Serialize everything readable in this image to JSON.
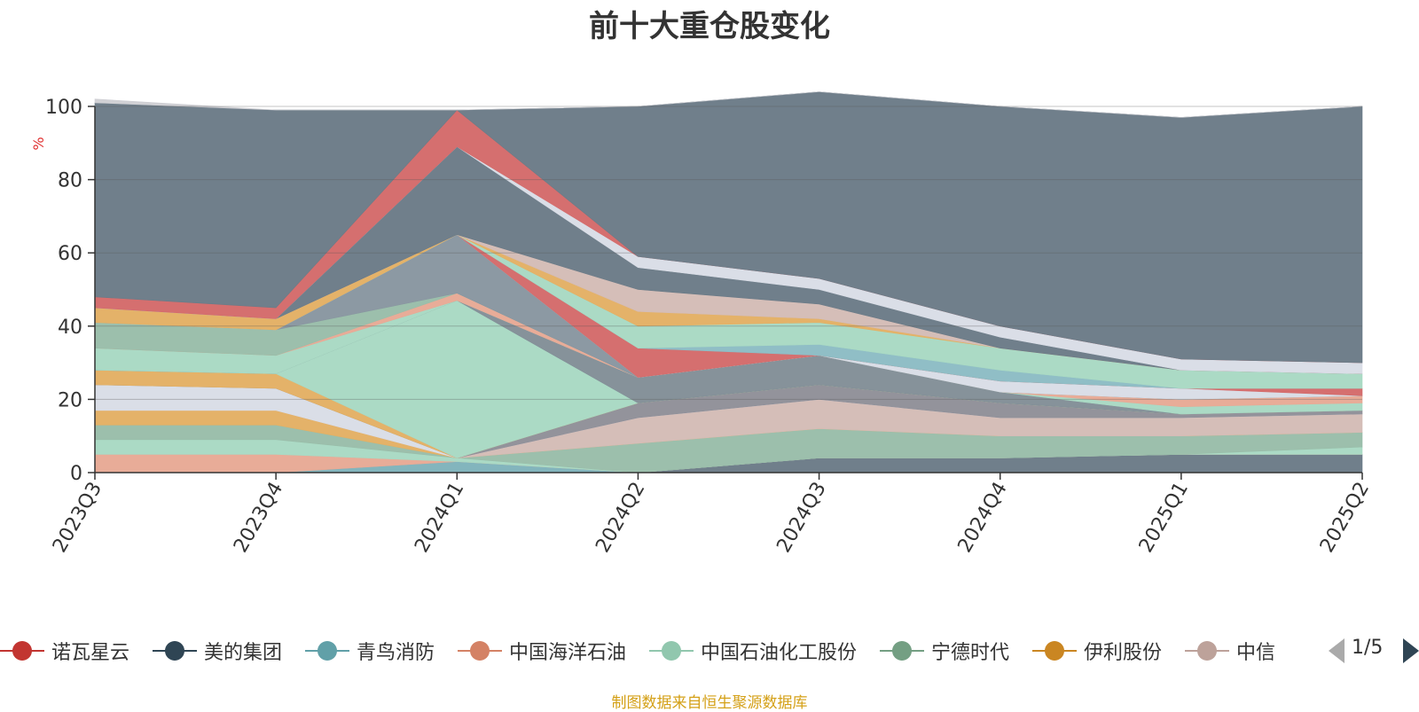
{
  "chart_data": {
    "type": "area",
    "stacked": true,
    "title": "前十大重仓股变化",
    "xlabel": "",
    "ylabel": "%",
    "ylim": [
      0,
      100
    ],
    "yticks": [
      0,
      20,
      40,
      60,
      80,
      100
    ],
    "grid": true,
    "legend_position": "bottom",
    "categories": [
      "2023Q3",
      "2023Q4",
      "2024Q1",
      "2024Q2",
      "2024Q3",
      "2024Q4",
      "2025Q1",
      "2025Q2"
    ],
    "series": [
      {
        "name": "美的集团",
        "color": "#6b7b87",
        "values": [
          0,
          0,
          0,
          0,
          4,
          4,
          5,
          5
        ]
      },
      {
        "name": "青鸟消防",
        "color": "#7fb3bb",
        "values": [
          0,
          0,
          3,
          0,
          0,
          0,
          0,
          0
        ]
      },
      {
        "name": "中国海洋石油",
        "color": "#e7a995",
        "values": [
          5,
          5,
          0,
          0,
          0,
          0,
          0,
          0
        ]
      },
      {
        "name": "中国石油化工股份",
        "color": "#a8d9c3",
        "values": [
          4,
          4,
          1,
          0,
          0,
          0,
          0,
          2
        ]
      },
      {
        "name": "宁德时代",
        "color": "#99bda9",
        "values": [
          4,
          4,
          0,
          8,
          8,
          6,
          5,
          4
        ]
      },
      {
        "name": "伊利股份",
        "color": "#e3b064",
        "values": [
          4,
          4,
          0,
          0,
          0,
          0,
          0,
          0
        ]
      },
      {
        "name": "中信",
        "color": "#d4bcb6",
        "values": [
          0,
          0,
          0,
          7,
          8,
          5,
          5,
          5
        ]
      },
      {
        "name": "",
        "color": "#d9dde6",
        "values": [
          7,
          6,
          0,
          0,
          0,
          0,
          0,
          0
        ]
      },
      {
        "name": "",
        "color": "#8f8f98",
        "values": [
          0,
          0,
          0,
          4,
          4,
          4,
          1,
          1
        ]
      },
      {
        "name": "",
        "color": "#e3b064",
        "values": [
          4,
          4,
          0,
          0,
          0,
          0,
          0,
          0
        ]
      },
      {
        "name": "",
        "color": "#a8d9c3",
        "values": [
          0,
          0,
          43,
          0,
          0,
          0,
          0,
          0
        ]
      },
      {
        "name": "",
        "color": "#828e97",
        "values": [
          0,
          0,
          0,
          7,
          8,
          3,
          0,
          0
        ]
      },
      {
        "name": "",
        "color": "#a8d9c3",
        "values": [
          6,
          5,
          0,
          0,
          0,
          0,
          2,
          2
        ]
      },
      {
        "name": "",
        "color": "#e7a995",
        "values": [
          0,
          0,
          2,
          0,
          0,
          0,
          2,
          2
        ]
      },
      {
        "name": "",
        "color": "#99bda9",
        "values": [
          7,
          7,
          0,
          0,
          0,
          0,
          0,
          0
        ]
      },
      {
        "name": "",
        "color": "#8896a0",
        "values": [
          0,
          0,
          16,
          0,
          0,
          0,
          0,
          0
        ]
      },
      {
        "name": "",
        "color": "#d9dde6",
        "values": [
          0,
          0,
          0,
          0,
          0,
          3,
          3,
          0
        ]
      },
      {
        "name": "",
        "color": "#d46a6a",
        "values": [
          0,
          0,
          0,
          8,
          0,
          0,
          0,
          2
        ]
      },
      {
        "name": "",
        "color": "#8cbcc4",
        "values": [
          0,
          0,
          0,
          0,
          3,
          3,
          0,
          0
        ]
      },
      {
        "name": "",
        "color": "#a8d9c3",
        "values": [
          0,
          0,
          0,
          6,
          6,
          6,
          5,
          4
        ]
      },
      {
        "name": "",
        "color": "#e3b064",
        "values": [
          4,
          3,
          0,
          4,
          1,
          0,
          0,
          0
        ]
      },
      {
        "name": "",
        "color": "#d4bcb6",
        "values": [
          0,
          0,
          0,
          6,
          4,
          0,
          0,
          0
        ]
      },
      {
        "name": "",
        "color": "#6b7b87",
        "values": [
          0,
          0,
          24,
          6,
          4,
          3,
          0,
          0
        ]
      },
      {
        "name": "",
        "color": "#d9dde6",
        "values": [
          0,
          0,
          0,
          3,
          3,
          3,
          3,
          3
        ]
      },
      {
        "name": "",
        "color": "#d46a6a",
        "values": [
          3,
          3,
          10,
          0,
          0,
          0,
          0,
          0
        ]
      },
      {
        "name": "",
        "color": "#6b7b87",
        "values": [
          53,
          54,
          0,
          41,
          51,
          60,
          66,
          70
        ]
      },
      {
        "name": "",
        "color": "#cfcfd4",
        "values": [
          1,
          0,
          0,
          0,
          0,
          0,
          0,
          0
        ]
      }
    ]
  },
  "legend": {
    "items": [
      {
        "name": "诺瓦星云",
        "color": "#c23531"
      },
      {
        "name": "美的集团",
        "color": "#2f4554"
      },
      {
        "name": "青鸟消防",
        "color": "#61a0a8"
      },
      {
        "name": "中国海洋石油",
        "color": "#d48265"
      },
      {
        "name": "中国石油化工股份",
        "color": "#91c7ae"
      },
      {
        "name": "宁德时代",
        "color": "#749f83"
      },
      {
        "name": "伊利股份",
        "color": "#ca8622"
      },
      {
        "name": "中信",
        "color": "#bda29a"
      }
    ],
    "page": "1/5"
  },
  "footer": {
    "source": "制图数据来自恒生聚源数据库"
  }
}
